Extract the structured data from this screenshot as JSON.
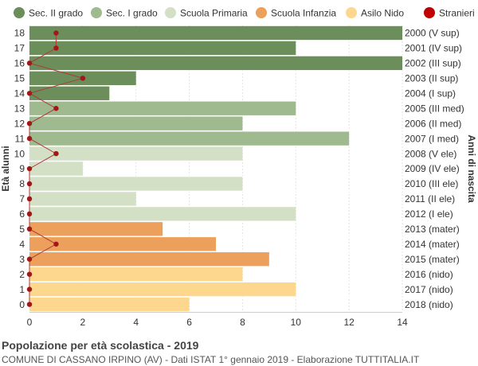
{
  "chart_data": {
    "type": "bar",
    "orientation": "horizontal",
    "ylabel": "Età alunni",
    "ylabel_right": "Anni di nascita",
    "xlim": [
      0,
      14
    ],
    "x_ticks": [
      0,
      2,
      4,
      6,
      8,
      10,
      12,
      14
    ],
    "grid": true,
    "legend_position": "top",
    "legend": [
      {
        "name": "Sec. II grado",
        "color": "#6b8e5a"
      },
      {
        "name": "Sec. I grado",
        "color": "#9fba8f"
      },
      {
        "name": "Scuola Primaria",
        "color": "#d3e0c6"
      },
      {
        "name": "Scuola Infanzia",
        "color": "#eca05b"
      },
      {
        "name": "Asilo Nido",
        "color": "#fdd78e"
      },
      {
        "name": "Stranieri",
        "color": "#c00000"
      }
    ],
    "bars": [
      {
        "age": "18",
        "birth": "2000 (V sup)",
        "value": 14,
        "group": 0,
        "stranieri": 1
      },
      {
        "age": "17",
        "birth": "2001 (IV sup)",
        "value": 10,
        "group": 0,
        "stranieri": 1
      },
      {
        "age": "16",
        "birth": "2002 (III sup)",
        "value": 14,
        "group": 0,
        "stranieri": 0
      },
      {
        "age": "15",
        "birth": "2003 (II sup)",
        "value": 4,
        "group": 0,
        "stranieri": 2
      },
      {
        "age": "14",
        "birth": "2004 (I sup)",
        "value": 3,
        "group": 0,
        "stranieri": 0
      },
      {
        "age": "13",
        "birth": "2005 (III med)",
        "value": 10,
        "group": 1,
        "stranieri": 1
      },
      {
        "age": "12",
        "birth": "2006 (II med)",
        "value": 8,
        "group": 1,
        "stranieri": 0
      },
      {
        "age": "11",
        "birth": "2007 (I med)",
        "value": 12,
        "group": 1,
        "stranieri": 0
      },
      {
        "age": "10",
        "birth": "2008 (V ele)",
        "value": 8,
        "group": 2,
        "stranieri": 1
      },
      {
        "age": "9",
        "birth": "2009 (IV ele)",
        "value": 2,
        "group": 2,
        "stranieri": 0
      },
      {
        "age": "8",
        "birth": "2010 (III ele)",
        "value": 8,
        "group": 2,
        "stranieri": 0
      },
      {
        "age": "7",
        "birth": "2011 (II ele)",
        "value": 4,
        "group": 2,
        "stranieri": 0
      },
      {
        "age": "6",
        "birth": "2012 (I ele)",
        "value": 10,
        "group": 2,
        "stranieri": 0
      },
      {
        "age": "5",
        "birth": "2013 (mater)",
        "value": 5,
        "group": 3,
        "stranieri": 0
      },
      {
        "age": "4",
        "birth": "2014 (mater)",
        "value": 7,
        "group": 3,
        "stranieri": 1
      },
      {
        "age": "3",
        "birth": "2015 (mater)",
        "value": 9,
        "group": 3,
        "stranieri": 0
      },
      {
        "age": "2",
        "birth": "2016 (nido)",
        "value": 8,
        "group": 4,
        "stranieri": 0
      },
      {
        "age": "1",
        "birth": "2017 (nido)",
        "value": 10,
        "group": 4,
        "stranieri": 0
      },
      {
        "age": "0",
        "birth": "2018 (nido)",
        "value": 6,
        "group": 4,
        "stranieri": 0
      }
    ]
  },
  "footer": {
    "title": "Popolazione per età scolastica - 2019",
    "subtitle": "COMUNE DI CASSANO IRPINO (AV) - Dati ISTAT 1° gennaio 2019 - Elaborazione TUTTITALIA.IT"
  }
}
